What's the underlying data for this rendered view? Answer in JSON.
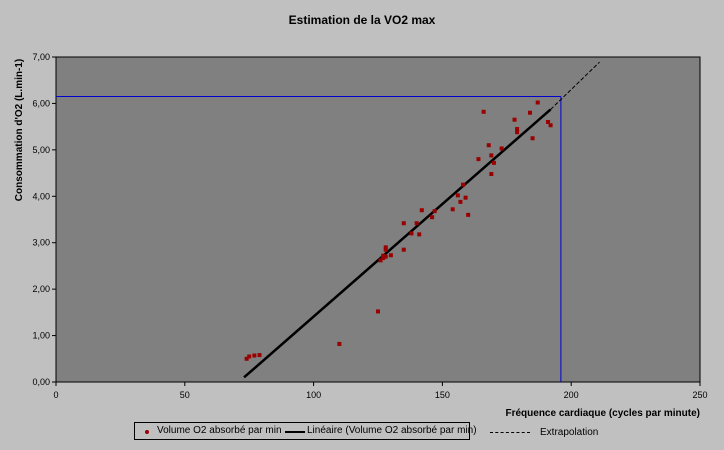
{
  "chart_data": {
    "type": "scatter",
    "title": "Estimation de la VO2 max",
    "xlabel": "Fréquence cardiaque (cycles par minute)",
    "ylabel": "Consommation d'O2 (L.min-1)",
    "xlim": [
      0,
      250
    ],
    "ylim": [
      0,
      7
    ],
    "x_ticks": [
      "0",
      "50",
      "100",
      "150",
      "200",
      "250"
    ],
    "y_ticks": [
      "0,00",
      "1,00",
      "2,00",
      "3,00",
      "4,00",
      "5,00",
      "6,00",
      "7,00"
    ],
    "grid": false,
    "legend_position": "bottom",
    "series": [
      {
        "name": "Volume O2 absorbé par min",
        "color": "#990000",
        "points": [
          [
            74,
            0.5
          ],
          [
            75,
            0.55
          ],
          [
            77,
            0.57
          ],
          [
            79,
            0.58
          ],
          [
            110,
            0.82
          ],
          [
            125,
            1.52
          ],
          [
            126,
            2.62
          ],
          [
            127,
            2.67
          ],
          [
            127,
            2.72
          ],
          [
            128,
            2.7
          ],
          [
            128,
            2.85
          ],
          [
            128,
            2.9
          ],
          [
            130,
            2.73
          ],
          [
            135,
            2.85
          ],
          [
            135,
            3.42
          ],
          [
            138,
            3.2
          ],
          [
            140,
            3.42
          ],
          [
            141,
            3.18
          ],
          [
            142,
            3.7
          ],
          [
            146,
            3.55
          ],
          [
            147,
            3.68
          ],
          [
            154,
            3.72
          ],
          [
            156,
            4.02
          ],
          [
            157,
            3.88
          ],
          [
            158,
            4.25
          ],
          [
            159,
            3.97
          ],
          [
            160,
            3.6
          ],
          [
            164,
            4.8
          ],
          [
            166,
            5.82
          ],
          [
            168,
            5.1
          ],
          [
            169,
            4.88
          ],
          [
            169,
            4.48
          ],
          [
            170,
            4.72
          ],
          [
            173,
            5.03
          ],
          [
            178,
            5.65
          ],
          [
            179,
            5.45
          ],
          [
            179,
            5.38
          ],
          [
            184,
            5.8
          ],
          [
            185,
            5.25
          ],
          [
            187,
            6.02
          ],
          [
            191,
            5.6
          ],
          [
            192,
            5.53
          ]
        ]
      },
      {
        "name": "Linéaire (Volume O2 absorbé par min)",
        "type": "line",
        "color": "#000000",
        "x": [
          73,
          192
        ],
        "y": [
          0.1,
          5.87
        ]
      },
      {
        "name": "Extrapolation",
        "type": "line",
        "style": "dashed",
        "color": "#000000",
        "x": [
          192,
          211
        ],
        "y": [
          5.87,
          6.89
        ]
      }
    ],
    "annotations": {
      "vo2max_x": 196,
      "vo2max_y": 6.15,
      "line_color": "#0000cc"
    }
  }
}
